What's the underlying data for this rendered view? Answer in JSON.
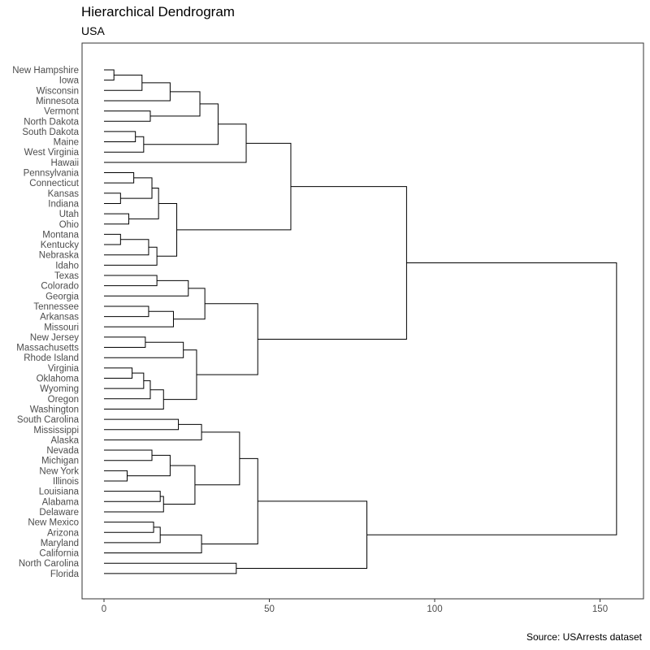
{
  "chart_data": {
    "type": "dendrogram",
    "title": "Hierarchical Dendrogram",
    "subtitle": "USA",
    "caption": "Source: USArrests dataset",
    "xlim": [
      -6.5,
      163
    ],
    "x_ticks": [
      0,
      50,
      100,
      150
    ],
    "x_tick_labels": [
      "0",
      "50",
      "100",
      "150"
    ],
    "grid": false,
    "leaves": [
      "New Hampshire",
      "Iowa",
      "Wisconsin",
      "Minnesota",
      "Vermont",
      "North Dakota",
      "South Dakota",
      "Maine",
      "West Virginia",
      "Hawaii",
      "Pennsylvania",
      "Connecticut",
      "Kansas",
      "Indiana",
      "Utah",
      "Ohio",
      "Montana",
      "Kentucky",
      "Nebraska",
      "Idaho",
      "Texas",
      "Colorado",
      "Georgia",
      "Tennessee",
      "Arkansas",
      "Missouri",
      "New Jersey",
      "Massachusetts",
      "Rhode Island",
      "Virginia",
      "Oklahoma",
      "Wyoming",
      "Oregon",
      "Washington",
      "South Carolina",
      "Mississippi",
      "Alaska",
      "Nevada",
      "Michigan",
      "New York",
      "Illinois",
      "Louisiana",
      "Alabama",
      "Delaware",
      "New Mexico",
      "Arizona",
      "Maryland",
      "California",
      "North Carolina",
      "Florida"
    ],
    "merges": [
      {
        "left": "New Hampshire",
        "right": "Iowa",
        "height": 3
      },
      {
        "left": "m1",
        "right": "Wisconsin",
        "height": 11.5
      },
      {
        "left": "m2",
        "right": "Minnesota",
        "height": 20
      },
      {
        "left": "Vermont",
        "right": "North Dakota",
        "height": 14
      },
      {
        "left": "m3",
        "right": "m4",
        "height": 29
      },
      {
        "left": "South Dakota",
        "right": "Maine",
        "height": 9.5
      },
      {
        "left": "m6",
        "right": "West Virginia",
        "height": 12
      },
      {
        "left": "m5",
        "right": "m7",
        "height": 34.5
      },
      {
        "left": "m8",
        "right": "Hawaii",
        "height": 43
      },
      {
        "left": "Pennsylvania",
        "right": "Connecticut",
        "height": 9
      },
      {
        "left": "Kansas",
        "right": "Indiana",
        "height": 5
      },
      {
        "left": "m10",
        "right": "m11",
        "height": 14.5
      },
      {
        "left": "Utah",
        "right": "Ohio",
        "height": 7.5
      },
      {
        "left": "m12",
        "right": "m13",
        "height": 16.5
      },
      {
        "left": "Montana",
        "right": "Kentucky",
        "height": 5
      },
      {
        "left": "m15",
        "right": "Nebraska",
        "height": 13.5
      },
      {
        "left": "m16",
        "right": "Idaho",
        "height": 16
      },
      {
        "left": "m14",
        "right": "m17",
        "height": 22
      },
      {
        "left": "m9",
        "right": "m18",
        "height": 56.5
      },
      {
        "left": "Texas",
        "right": "Colorado",
        "height": 16
      },
      {
        "left": "m20",
        "right": "Georgia",
        "height": 25.5
      },
      {
        "left": "Tennessee",
        "right": "Arkansas",
        "height": 13.5
      },
      {
        "left": "m22",
        "right": "Missouri",
        "height": 21
      },
      {
        "left": "m21",
        "right": "m23",
        "height": 30.5
      },
      {
        "left": "New Jersey",
        "right": "Massachusetts",
        "height": 12.5
      },
      {
        "left": "m25",
        "right": "Rhode Island",
        "height": 24
      },
      {
        "left": "Virginia",
        "right": "Oklahoma",
        "height": 8.5
      },
      {
        "left": "m27",
        "right": "Wyoming",
        "height": 12
      },
      {
        "left": "m28",
        "right": "Oregon",
        "height": 14
      },
      {
        "left": "m29",
        "right": "Washington",
        "height": 18
      },
      {
        "left": "m26",
        "right": "m30",
        "height": 28
      },
      {
        "left": "m24",
        "right": "m31",
        "height": 46.5
      },
      {
        "left": "m19",
        "right": "m32",
        "height": 91.5
      },
      {
        "left": "South Carolina",
        "right": "Mississippi",
        "height": 22.5
      },
      {
        "left": "m34",
        "right": "Alaska",
        "height": 29.5
      },
      {
        "left": "Nevada",
        "right": "Michigan",
        "height": 14.5
      },
      {
        "left": "New York",
        "right": "Illinois",
        "height": 7
      },
      {
        "left": "m36",
        "right": "m37",
        "height": 20
      },
      {
        "left": "Louisiana",
        "right": "Alabama",
        "height": 17
      },
      {
        "left": "m39",
        "right": "Delaware",
        "height": 18
      },
      {
        "left": "m38",
        "right": "m40",
        "height": 27.5
      },
      {
        "left": "m35",
        "right": "m41",
        "height": 41
      },
      {
        "left": "New Mexico",
        "right": "Arizona",
        "height": 15
      },
      {
        "left": "m43",
        "right": "Maryland",
        "height": 17
      },
      {
        "left": "m44",
        "right": "California",
        "height": 29.5
      },
      {
        "left": "m42",
        "right": "m45",
        "height": 46.5
      },
      {
        "left": "North Carolina",
        "right": "Florida",
        "height": 40
      },
      {
        "left": "m46",
        "right": "m47",
        "height": 79.5
      },
      {
        "left": "m33",
        "right": "m48",
        "height": 155
      }
    ]
  }
}
